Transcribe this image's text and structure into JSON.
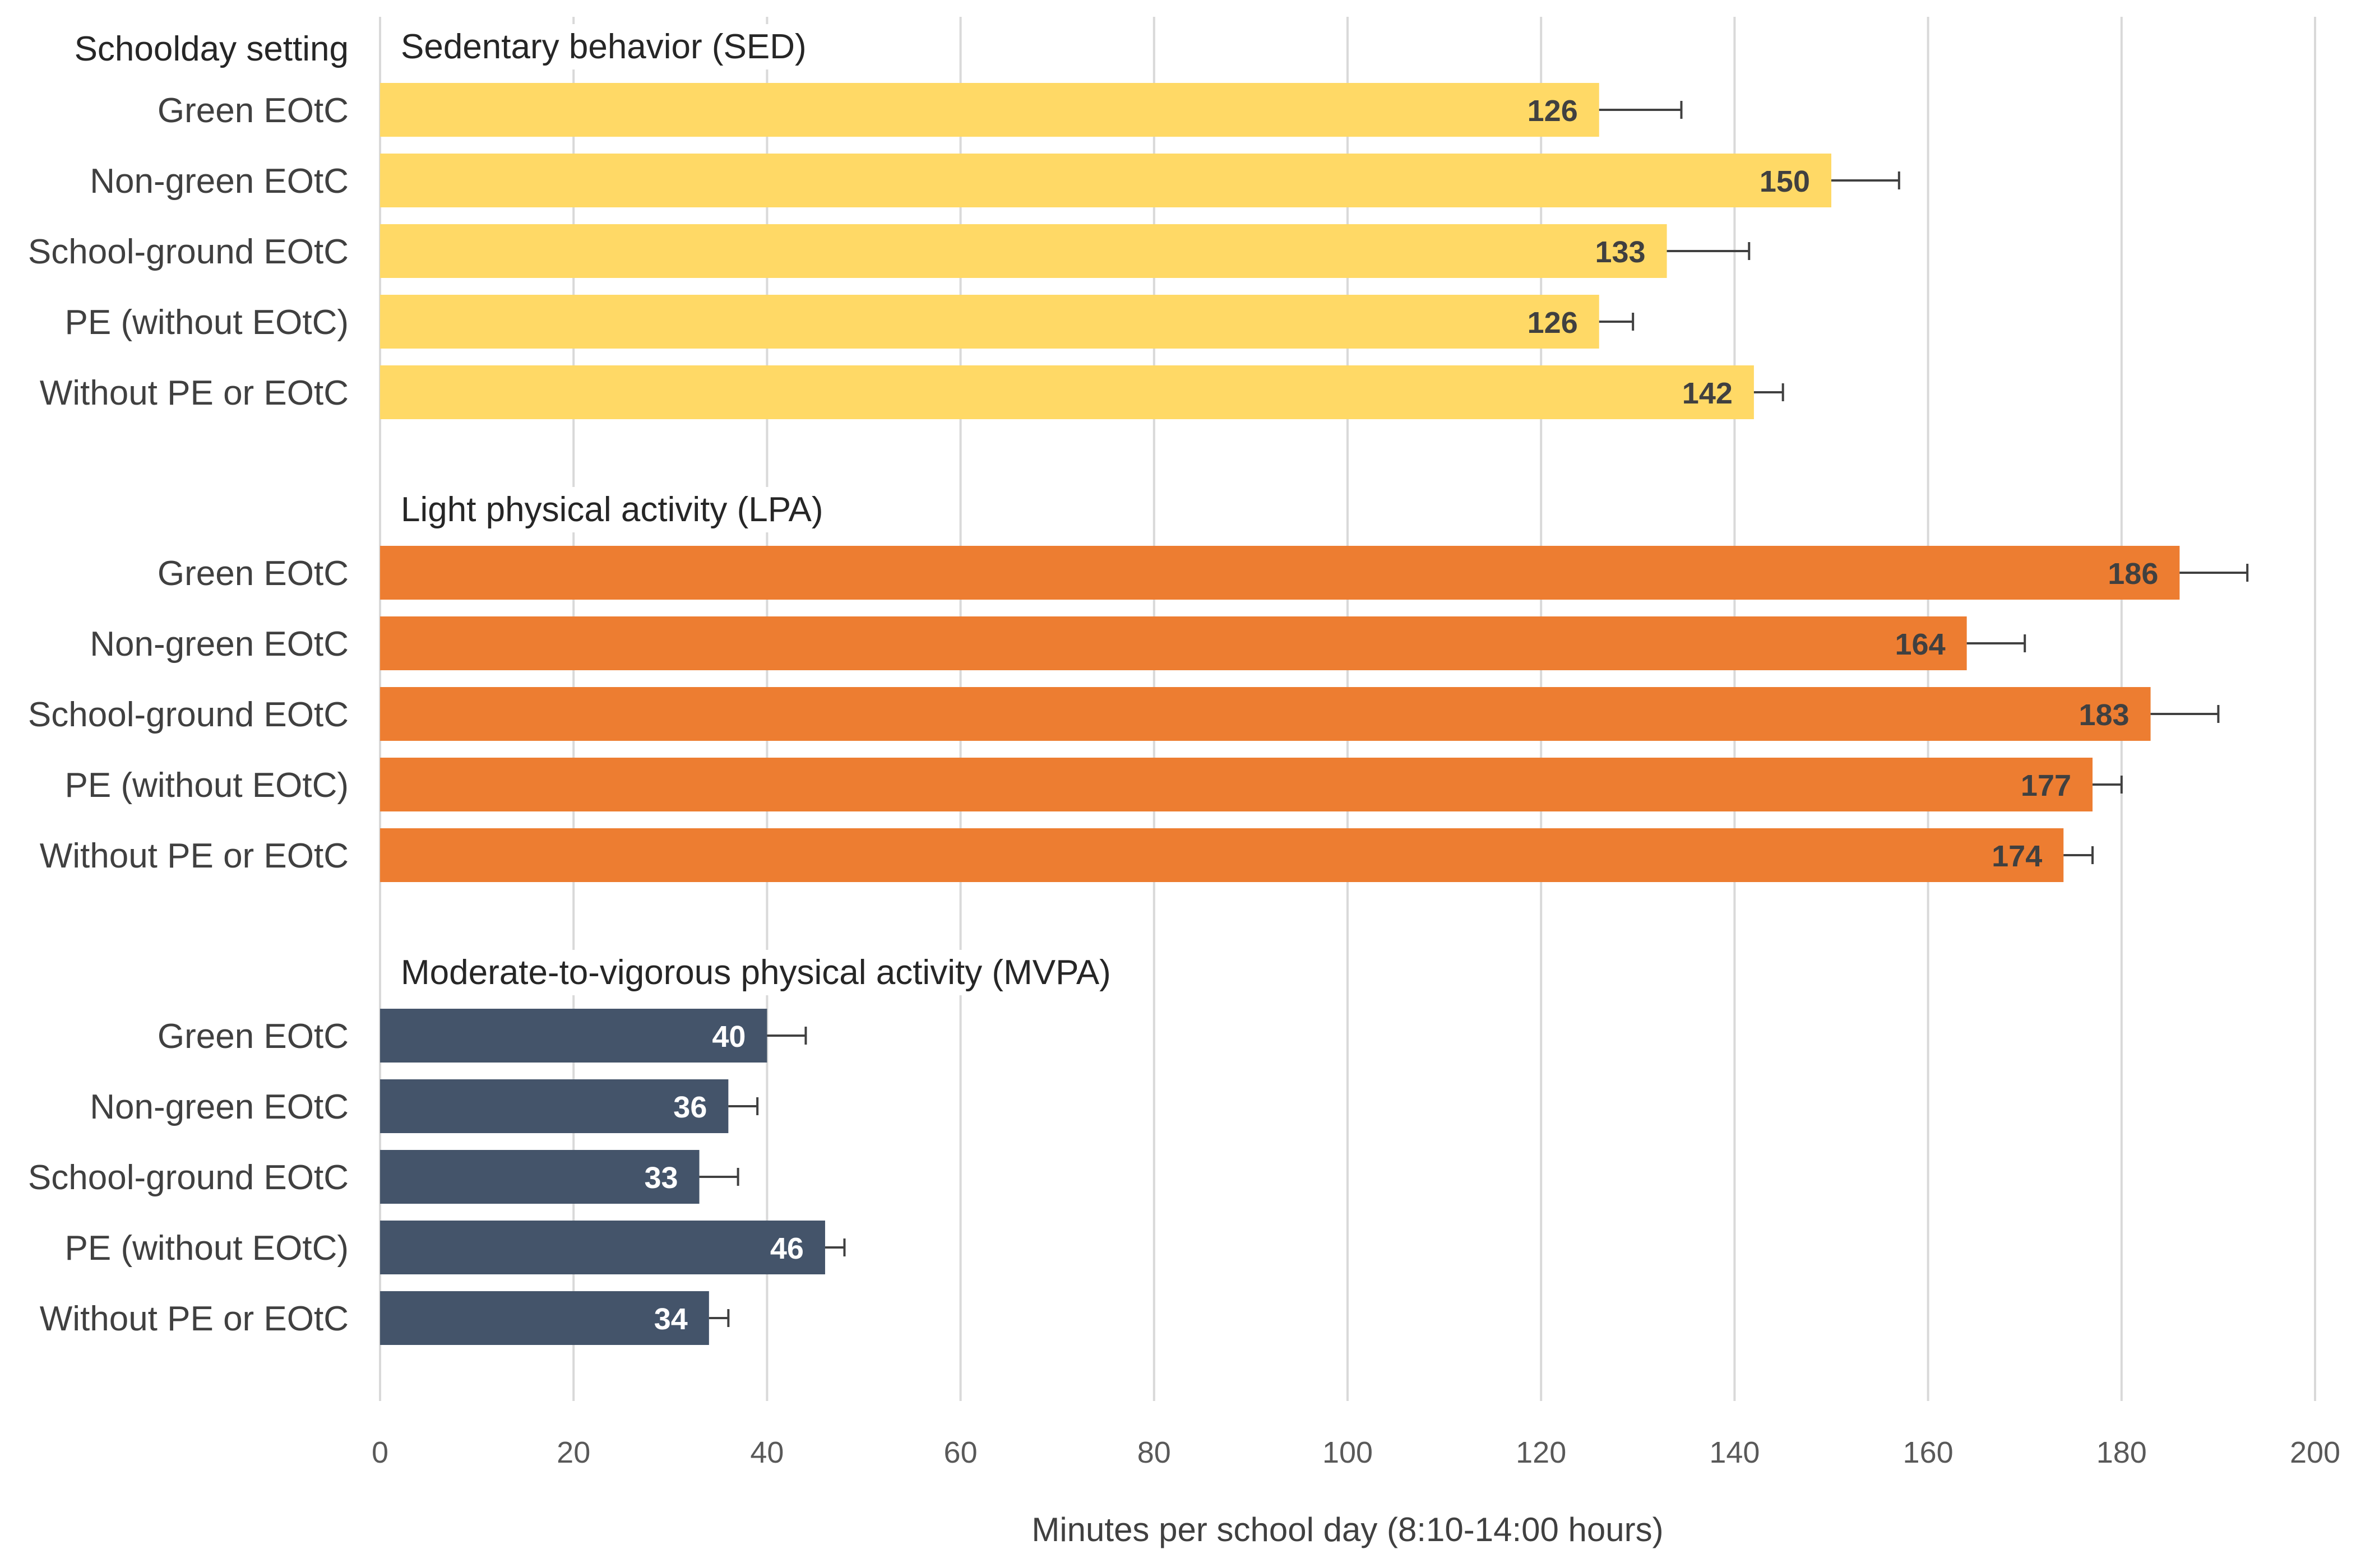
{
  "chart_data": {
    "type": "bar",
    "orientation": "horizontal",
    "category_header": "Schoolday setting",
    "categories": [
      "Green EOtC",
      "Non-green EOtC",
      "School-ground EOtC",
      "PE (without EOtC)",
      "Without PE or EOtC"
    ],
    "xlabel": "Minutes per school day (8:10-14:00 hours)",
    "xlim": [
      0,
      200
    ],
    "xticks": [
      0,
      20,
      40,
      60,
      80,
      100,
      120,
      140,
      160,
      180,
      200
    ],
    "grid": "vertical",
    "series": [
      {
        "name": "Sedentary behavior (SED)",
        "color": "#FFD966",
        "label_color": "#404040",
        "values": [
          126,
          150,
          133,
          126,
          142
        ],
        "error": [
          8.5,
          7,
          8.5,
          3.5,
          3
        ]
      },
      {
        "name": "Light physical activity (LPA)",
        "color": "#ED7D31",
        "label_color": "#404040",
        "values": [
          186,
          164,
          183,
          177,
          174
        ],
        "error": [
          7,
          6,
          7,
          3,
          3
        ]
      },
      {
        "name": "Moderate-to-vigorous physical activity (MVPA)",
        "color": "#44546A",
        "label_color": "#FFFFFF",
        "values": [
          40,
          36,
          33,
          46,
          34
        ],
        "error": [
          4,
          3,
          4,
          2,
          2
        ]
      }
    ]
  }
}
